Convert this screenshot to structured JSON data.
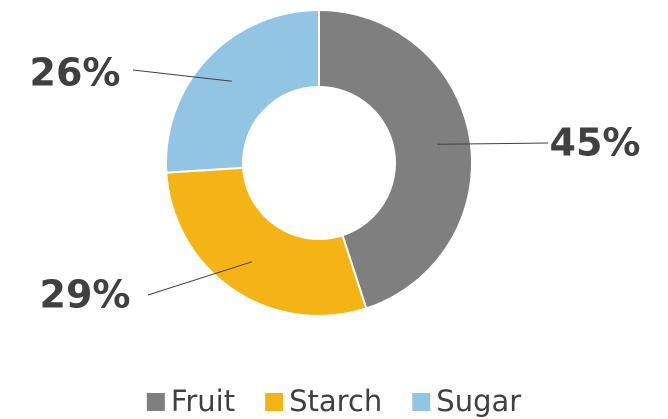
{
  "chart_data": {
    "type": "donut",
    "categories": [
      "Fruit",
      "Starch",
      "Sugar"
    ],
    "values": [
      45,
      29,
      26
    ],
    "value_labels": [
      "45%",
      "29%",
      "26%"
    ],
    "colors": [
      "#7f7f7f",
      "#f5b416",
      "#92c5e3"
    ],
    "legend": "bottom"
  }
}
